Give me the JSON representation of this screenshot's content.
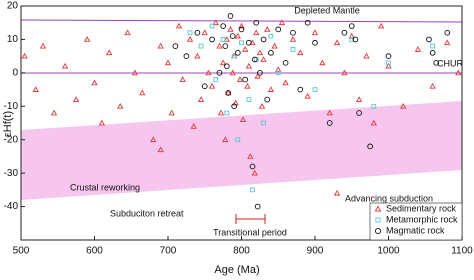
{
  "chart_data": {
    "type": "scatter",
    "x_label": "Age (Ma)",
    "y_label": "εHf(t)",
    "xlim": [
      500,
      1100
    ],
    "ylim": [
      -50,
      20
    ],
    "xticks": [
      500,
      600,
      700,
      800,
      900,
      1000,
      1100
    ],
    "yticks": [
      -40,
      -30,
      -20,
      -10,
      0,
      10,
      20
    ],
    "annotations": [
      "Depleted Mantle",
      "CHUR",
      "Crustal reworking",
      "Subduciton retreat",
      "Advancing subduction",
      "Transitional period"
    ],
    "legend_position": "lower right",
    "series": [
      {
        "name": "Sedimentary rock",
        "color": "#e53535",
        "marker": "triangle",
        "x": [
          505,
          520,
          530,
          545,
          560,
          575,
          590,
          600,
          610,
          620,
          635,
          645,
          655,
          665,
          680,
          690,
          700,
          705,
          715,
          720,
          730,
          735,
          740,
          745,
          750,
          755,
          760,
          765,
          770,
          772,
          775,
          778,
          780,
          782,
          785,
          788,
          790,
          792,
          795,
          798,
          800,
          802,
          805,
          808,
          810,
          812,
          815,
          818,
          820,
          822,
          825,
          828,
          830,
          835,
          840,
          845,
          850,
          855,
          860,
          870,
          880,
          890,
          900,
          910,
          920,
          930,
          940,
          950,
          960,
          970,
          980,
          990,
          1000,
          1020,
          1040,
          1060,
          1080,
          1095,
          930,
          690
        ],
        "values": [
          5,
          -5,
          8,
          -12,
          2,
          -8,
          10,
          -3,
          -15,
          6,
          -10,
          12,
          0,
          -6,
          -20,
          8,
          3,
          -12,
          14,
          -2,
          10,
          -16,
          5,
          -8,
          12,
          0,
          -4,
          15,
          8,
          -12,
          3,
          -20,
          10,
          -6,
          13,
          0,
          5,
          -9,
          11,
          -2,
          14,
          -14,
          7,
          -4,
          2,
          -25,
          9,
          -30,
          12,
          -1,
          6,
          -10,
          4,
          13,
          -5,
          8,
          1,
          15,
          -3,
          10,
          6,
          -7,
          12,
          3,
          -12,
          9,
          0,
          11,
          -8,
          5,
          -15,
          14,
          2,
          -10,
          7,
          -4,
          9,
          0,
          -36,
          -23
        ]
      },
      {
        "name": "Metamorphic rock",
        "color": "#5cc6d6",
        "marker": "square",
        "x": [
          730,
          745,
          760,
          765,
          775,
          780,
          790,
          795,
          800,
          810,
          815,
          820,
          830,
          840,
          850,
          870,
          900,
          950,
          980,
          1000,
          1060
        ],
        "values": [
          12,
          8,
          14,
          -2,
          10,
          -12,
          5,
          -20,
          9,
          -8,
          -35,
          4,
          -15,
          11,
          0,
          7,
          -5,
          10,
          -10,
          3,
          8
        ]
      },
      {
        "name": "Magmatic rock",
        "color": "#111111",
        "marker": "circle",
        "x": [
          710,
          725,
          740,
          750,
          760,
          770,
          775,
          778,
          780,
          782,
          785,
          788,
          790,
          795,
          800,
          805,
          810,
          815,
          818,
          820,
          822,
          825,
          830,
          835,
          840,
          850,
          860,
          870,
          880,
          890,
          900,
          920,
          940,
          950,
          955,
          960,
          975,
          1000,
          1055,
          1060,
          1065,
          1080
        ],
        "values": [
          8,
          5,
          12,
          -4,
          10,
          0,
          14,
          8,
          2,
          -6,
          17,
          11,
          -10,
          6,
          13,
          -2,
          9,
          -28,
          4,
          15,
          -40,
          0,
          10,
          -8,
          6,
          13,
          3,
          12,
          -5,
          15,
          9,
          -15,
          12,
          14,
          10,
          -12,
          -22,
          5,
          10,
          6,
          3,
          12
        ]
      }
    ]
  }
}
